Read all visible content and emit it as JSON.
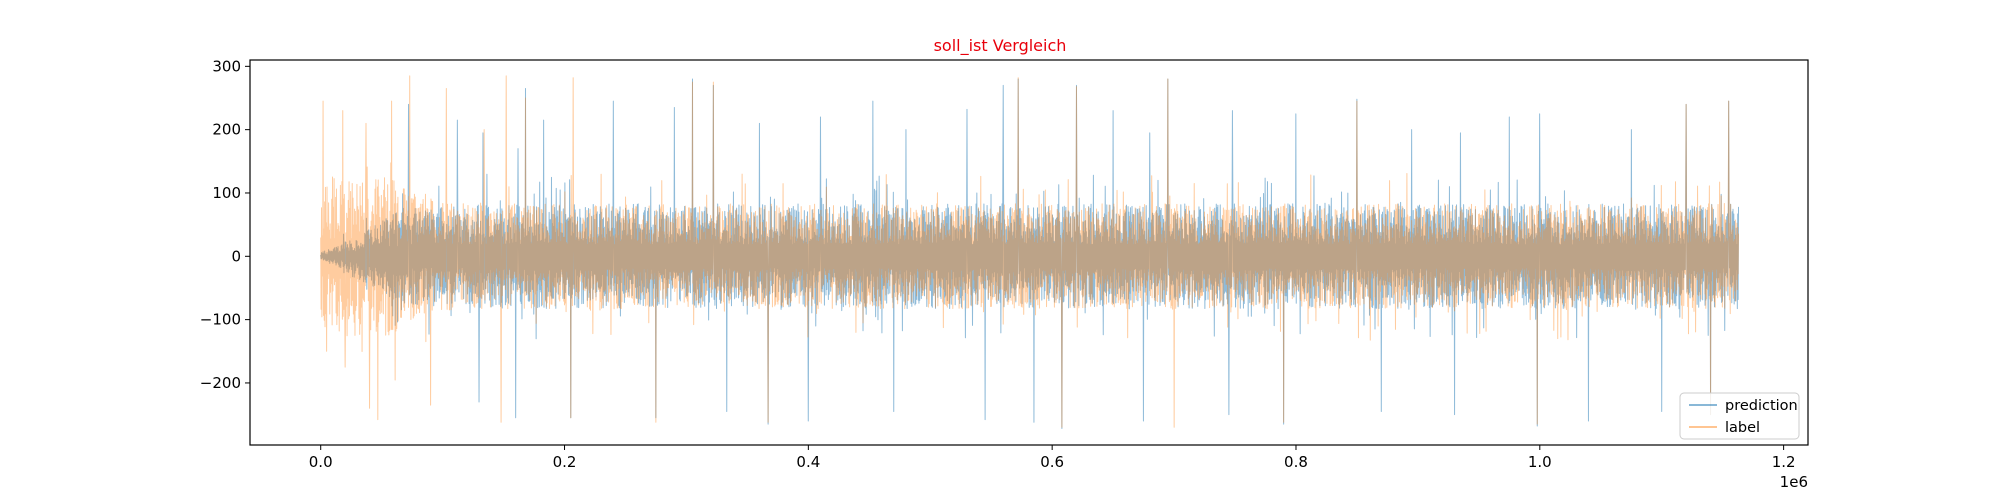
{
  "chart_data": {
    "type": "line",
    "title": "soll_ist Vergleich",
    "title_color": "#e8000b",
    "xlabel": "",
    "ylabel": "",
    "x_multiplier_label": "1e6",
    "xlim": [
      -0.058,
      1.22
    ],
    "ylim": [
      -298,
      310
    ],
    "x_ticks": [
      0.0,
      0.2,
      0.4,
      0.6,
      0.8,
      1.0,
      1.2
    ],
    "x_tick_labels": [
      "0.0",
      "0.2",
      "0.4",
      "0.6",
      "0.8",
      "1.0",
      "1.2"
    ],
    "y_ticks": [
      300,
      200,
      100,
      0,
      -100,
      -200
    ],
    "y_tick_labels": [
      "300",
      "200",
      "100",
      "0",
      "−100",
      "−200"
    ],
    "grid": false,
    "legend_position": "bottom-right",
    "x_range": [
      0.0,
      1.163
    ],
    "series": [
      {
        "name": "prediction",
        "color": "#1f77b4",
        "alpha": 0.5,
        "envelope": {
          "x": [
            0.0,
            0.01,
            0.02,
            0.03,
            0.04,
            0.05,
            0.06,
            0.07,
            0.1,
            0.15,
            0.2,
            0.3,
            0.4,
            0.5,
            0.6,
            0.7,
            0.8,
            0.9,
            1.0,
            1.1,
            1.163
          ],
          "typical_amplitude": [
            5,
            12,
            20,
            30,
            40,
            50,
            60,
            65,
            70,
            72,
            72,
            72,
            72,
            72,
            72,
            72,
            72,
            72,
            72,
            72,
            72
          ]
        },
        "peaks": [
          {
            "x": 0.072,
            "y": 240
          },
          {
            "x": 0.112,
            "y": 215
          },
          {
            "x": 0.133,
            "y": 195
          },
          {
            "x": 0.162,
            "y": 170
          },
          {
            "x": 0.168,
            "y": 265
          },
          {
            "x": 0.183,
            "y": 215
          },
          {
            "x": 0.205,
            "y": 280
          },
          {
            "x": 0.24,
            "y": 245
          },
          {
            "x": 0.29,
            "y": 235
          },
          {
            "x": 0.305,
            "y": 280
          },
          {
            "x": 0.322,
            "y": 270
          },
          {
            "x": 0.36,
            "y": 210
          },
          {
            "x": 0.41,
            "y": 220
          },
          {
            "x": 0.453,
            "y": 245
          },
          {
            "x": 0.48,
            "y": 200
          },
          {
            "x": 0.53,
            "y": 232
          },
          {
            "x": 0.56,
            "y": 270
          },
          {
            "x": 0.572,
            "y": 280
          },
          {
            "x": 0.62,
            "y": 270
          },
          {
            "x": 0.65,
            "y": 230
          },
          {
            "x": 0.68,
            "y": 195
          },
          {
            "x": 0.695,
            "y": 280
          },
          {
            "x": 0.748,
            "y": 230
          },
          {
            "x": 0.8,
            "y": 225
          },
          {
            "x": 0.85,
            "y": 248
          },
          {
            "x": 0.895,
            "y": 200
          },
          {
            "x": 0.935,
            "y": 195
          },
          {
            "x": 0.975,
            "y": 220
          },
          {
            "x": 1.0,
            "y": 225
          },
          {
            "x": 1.075,
            "y": 200
          },
          {
            "x": 1.12,
            "y": 240
          },
          {
            "x": 1.155,
            "y": 245
          }
        ],
        "troughs": [
          {
            "x": 0.13,
            "y": -230
          },
          {
            "x": 0.16,
            "y": -255
          },
          {
            "x": 0.205,
            "y": -255
          },
          {
            "x": 0.275,
            "y": -255
          },
          {
            "x": 0.333,
            "y": -245
          },
          {
            "x": 0.367,
            "y": -265
          },
          {
            "x": 0.4,
            "y": -260
          },
          {
            "x": 0.47,
            "y": -245
          },
          {
            "x": 0.545,
            "y": -258
          },
          {
            "x": 0.585,
            "y": -262
          },
          {
            "x": 0.608,
            "y": -272
          },
          {
            "x": 0.675,
            "y": -260
          },
          {
            "x": 0.745,
            "y": -250
          },
          {
            "x": 0.79,
            "y": -265
          },
          {
            "x": 0.87,
            "y": -245
          },
          {
            "x": 0.93,
            "y": -250
          },
          {
            "x": 0.998,
            "y": -268
          },
          {
            "x": 1.04,
            "y": -260
          },
          {
            "x": 1.1,
            "y": -245
          },
          {
            "x": 1.14,
            "y": -250
          }
        ]
      },
      {
        "name": "label",
        "color": "#ff7f0e",
        "alpha": 0.4,
        "envelope": {
          "x": [
            0.0,
            0.01,
            0.02,
            0.03,
            0.04,
            0.05,
            0.06,
            0.07,
            0.1,
            0.15,
            0.2,
            0.3,
            0.4,
            0.5,
            0.6,
            0.7,
            0.8,
            0.9,
            1.0,
            1.1,
            1.163
          ],
          "typical_amplitude": [
            90,
            110,
            110,
            110,
            110,
            110,
            110,
            90,
            75,
            72,
            72,
            72,
            72,
            72,
            72,
            72,
            72,
            72,
            72,
            72,
            72
          ]
        },
        "peaks": [
          {
            "x": 0.002,
            "y": 245
          },
          {
            "x": 0.018,
            "y": 230
          },
          {
            "x": 0.037,
            "y": 210
          },
          {
            "x": 0.058,
            "y": 245
          },
          {
            "x": 0.073,
            "y": 285
          },
          {
            "x": 0.103,
            "y": 265
          },
          {
            "x": 0.134,
            "y": 200
          },
          {
            "x": 0.152,
            "y": 285
          },
          {
            "x": 0.168,
            "y": 250
          },
          {
            "x": 0.207,
            "y": 282
          },
          {
            "x": 0.305,
            "y": 275
          },
          {
            "x": 0.322,
            "y": 275
          },
          {
            "x": 0.572,
            "y": 282
          },
          {
            "x": 0.62,
            "y": 268
          },
          {
            "x": 0.695,
            "y": 280
          },
          {
            "x": 0.85,
            "y": 245
          },
          {
            "x": 1.12,
            "y": 240
          },
          {
            "x": 1.155,
            "y": 245
          }
        ],
        "troughs": [
          {
            "x": 0.005,
            "y": -150
          },
          {
            "x": 0.02,
            "y": -175
          },
          {
            "x": 0.04,
            "y": -240
          },
          {
            "x": 0.047,
            "y": -258
          },
          {
            "x": 0.09,
            "y": -235
          },
          {
            "x": 0.148,
            "y": -262
          },
          {
            "x": 0.205,
            "y": -255
          },
          {
            "x": 0.275,
            "y": -262
          },
          {
            "x": 0.367,
            "y": -262
          },
          {
            "x": 0.608,
            "y": -270
          },
          {
            "x": 0.7,
            "y": -270
          },
          {
            "x": 0.79,
            "y": -262
          },
          {
            "x": 0.998,
            "y": -265
          },
          {
            "x": 1.14,
            "y": -250
          }
        ]
      }
    ]
  }
}
